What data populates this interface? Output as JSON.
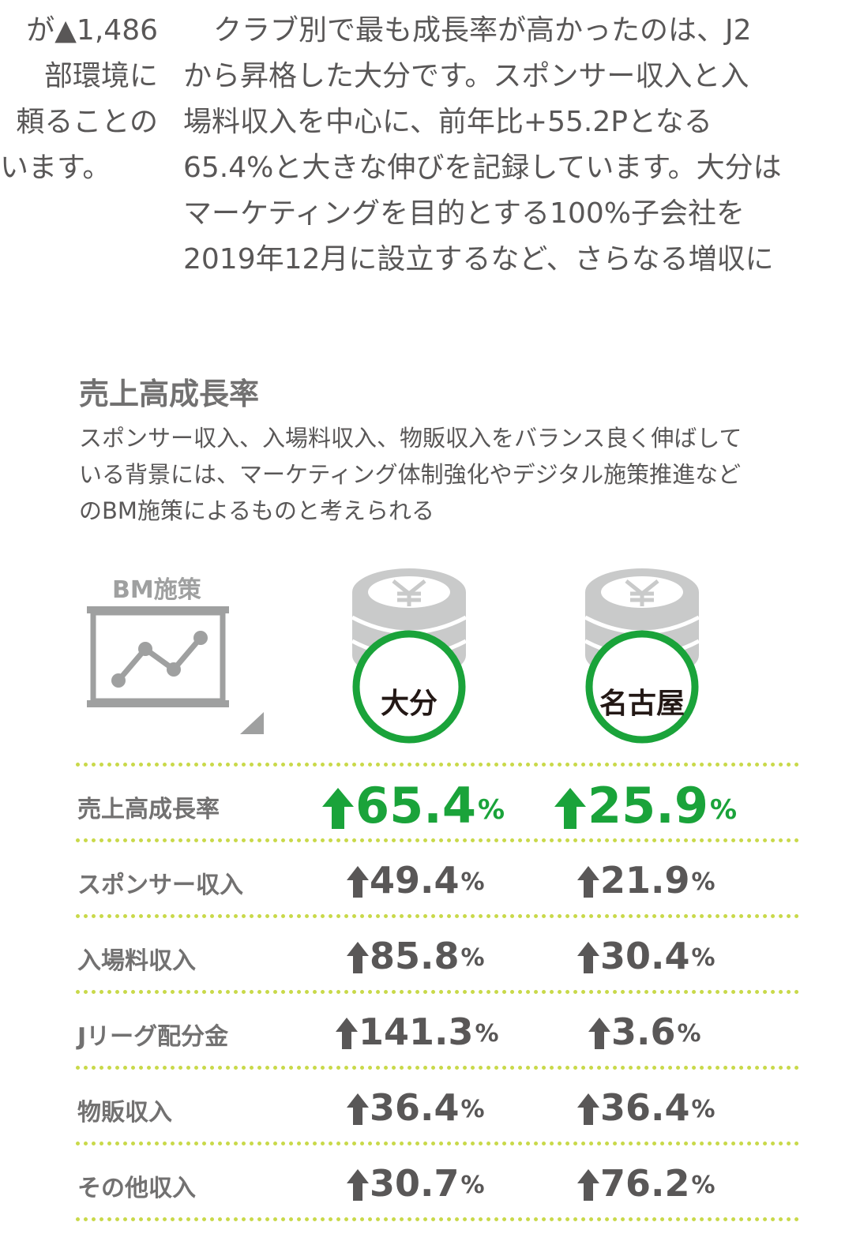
{
  "left_column": {
    "lines": [
      "が▲1,486",
      "部環境に",
      "頼ることの",
      "います。"
    ]
  },
  "right_column": {
    "lines": [
      "クラブ別で最も成長率が高かったのは、J2",
      "から昇格した大分です。スポンサー収入と入",
      "場料収入を中心に、前年比+55.2Pとなる",
      "65.4%と大きな伸びを記録しています。大分は",
      "マーケティングを目的とする100%子会社を",
      "2019年12月に設立するなど、さらなる増収に"
    ]
  },
  "section": {
    "title": "売上高成長率",
    "description_lines": [
      "スポンサー収入、入場料収入、物販収入をバランス良く伸ばして",
      "いる背景には、マーケティング体制強化やデジタル施策推進など",
      "のBM施策によるものと考えられる"
    ]
  },
  "bm_label": "BM施策",
  "clubs": [
    "大分",
    "名古屋"
  ],
  "colors": {
    "green": "#1aa33a",
    "gray_text": "#595757",
    "coin_gray": "#c9caca",
    "dotted_line": "#c9d94a"
  },
  "icons": {
    "arrow": "up-arrow-icon",
    "coin": "yen-coin-stack-icon",
    "board": "chart-board-icon"
  },
  "rows": [
    {
      "label": "売上高成長率",
      "oita": "65.4",
      "nagoya": "25.9",
      "unit": "%"
    },
    {
      "label": "スポンサー収入",
      "oita": "49.4",
      "nagoya": "21.9",
      "unit": "%"
    },
    {
      "label": "入場料収入",
      "oita": "85.8",
      "nagoya": "30.4",
      "unit": "%"
    },
    {
      "label": "Jリーグ配分金",
      "oita": "141.3",
      "nagoya": "3.6",
      "unit": "%"
    },
    {
      "label": "物販収入",
      "oita": "36.4",
      "nagoya": "36.4",
      "unit": "%"
    },
    {
      "label": "その他収入",
      "oita": "30.7",
      "nagoya": "76.2",
      "unit": "%"
    }
  ]
}
